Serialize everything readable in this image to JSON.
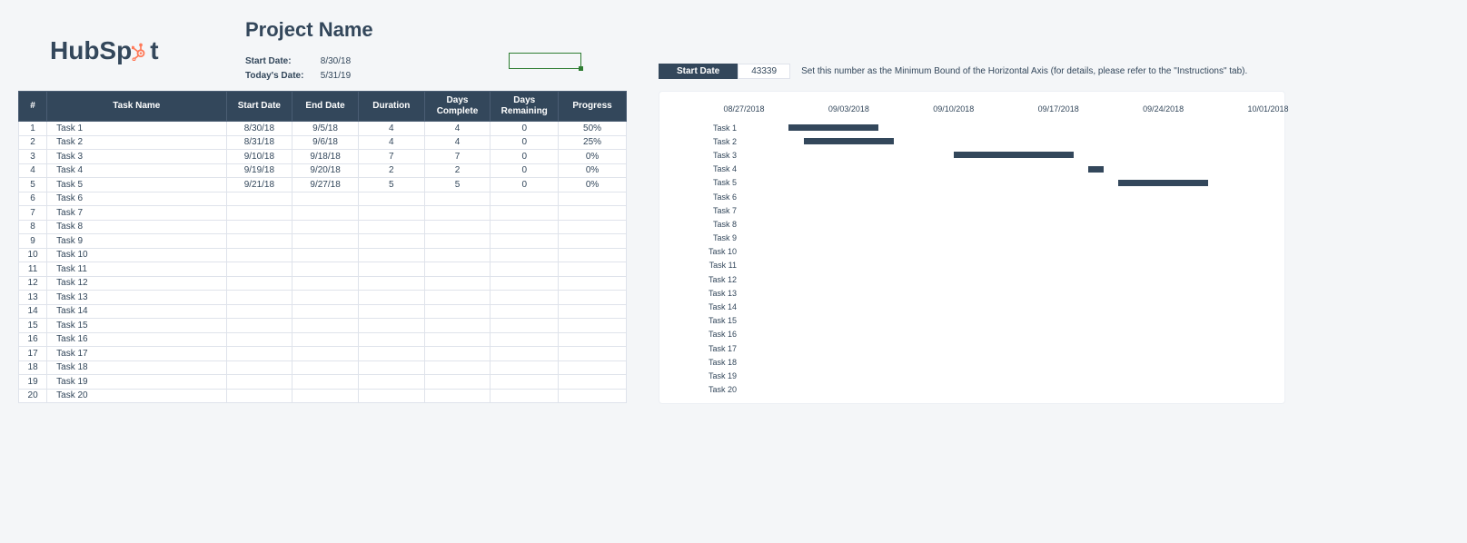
{
  "page": {
    "background_color": "#f4f6f8",
    "text_color": "#33475b"
  },
  "logo": {
    "text_pre": "HubSp",
    "text_post": "t",
    "accent_color": "#ff7a59"
  },
  "header": {
    "title": "Project Name",
    "start_date_label": "Start Date:",
    "start_date_value": "8/30/18",
    "today_label": "Today's Date:",
    "today_value": "5/31/19"
  },
  "startbar": {
    "label": "Start Date",
    "value": "43339",
    "note": "Set this number as the Minimum Bound of the Horizontal Axis (for details, please refer to the \"Instructions\" tab)."
  },
  "table": {
    "headers": {
      "idx": "#",
      "name": "Task Name",
      "start": "Start Date",
      "end": "End Date",
      "dur": "Duration",
      "dc": "Days\nComplete",
      "dr": "Days\nRemaining",
      "pr": "Progress"
    },
    "header_bg": "#33475b",
    "header_fg": "#ffffff",
    "border_color": "#dfe3eb",
    "rows": [
      {
        "idx": "1",
        "name": "Task 1",
        "start": "8/30/18",
        "end": "9/5/18",
        "dur": "4",
        "dc": "4",
        "dr": "0",
        "pr": "50%"
      },
      {
        "idx": "2",
        "name": "Task 2",
        "start": "8/31/18",
        "end": "9/6/18",
        "dur": "4",
        "dc": "4",
        "dr": "0",
        "pr": "25%"
      },
      {
        "idx": "3",
        "name": "Task 3",
        "start": "9/10/18",
        "end": "9/18/18",
        "dur": "7",
        "dc": "7",
        "dr": "0",
        "pr": "0%"
      },
      {
        "idx": "4",
        "name": "Task 4",
        "start": "9/19/18",
        "end": "9/20/18",
        "dur": "2",
        "dc": "2",
        "dr": "0",
        "pr": "0%"
      },
      {
        "idx": "5",
        "name": "Task 5",
        "start": "9/21/18",
        "end": "9/27/18",
        "dur": "5",
        "dc": "5",
        "dr": "0",
        "pr": "0%"
      },
      {
        "idx": "6",
        "name": "Task 6",
        "start": "",
        "end": "",
        "dur": "",
        "dc": "",
        "dr": "",
        "pr": ""
      },
      {
        "idx": "7",
        "name": "Task 7",
        "start": "",
        "end": "",
        "dur": "",
        "dc": "",
        "dr": "",
        "pr": ""
      },
      {
        "idx": "8",
        "name": "Task 8",
        "start": "",
        "end": "",
        "dur": "",
        "dc": "",
        "dr": "",
        "pr": ""
      },
      {
        "idx": "9",
        "name": "Task 9",
        "start": "",
        "end": "",
        "dur": "",
        "dc": "",
        "dr": "",
        "pr": ""
      },
      {
        "idx": "10",
        "name": "Task 10",
        "start": "",
        "end": "",
        "dur": "",
        "dc": "",
        "dr": "",
        "pr": ""
      },
      {
        "idx": "11",
        "name": "Task 11",
        "start": "",
        "end": "",
        "dur": "",
        "dc": "",
        "dr": "",
        "pr": ""
      },
      {
        "idx": "12",
        "name": "Task 12",
        "start": "",
        "end": "",
        "dur": "",
        "dc": "",
        "dr": "",
        "pr": ""
      },
      {
        "idx": "13",
        "name": "Task 13",
        "start": "",
        "end": "",
        "dur": "",
        "dc": "",
        "dr": "",
        "pr": ""
      },
      {
        "idx": "14",
        "name": "Task 14",
        "start": "",
        "end": "",
        "dur": "",
        "dc": "",
        "dr": "",
        "pr": ""
      },
      {
        "idx": "15",
        "name": "Task 15",
        "start": "",
        "end": "",
        "dur": "",
        "dc": "",
        "dr": "",
        "pr": ""
      },
      {
        "idx": "16",
        "name": "Task 16",
        "start": "",
        "end": "",
        "dur": "",
        "dc": "",
        "dr": "",
        "pr": ""
      },
      {
        "idx": "17",
        "name": "Task 17",
        "start": "",
        "end": "",
        "dur": "",
        "dc": "",
        "dr": "",
        "pr": ""
      },
      {
        "idx": "18",
        "name": "Task 18",
        "start": "",
        "end": "",
        "dur": "",
        "dc": "",
        "dr": "",
        "pr": ""
      },
      {
        "idx": "19",
        "name": "Task 19",
        "start": "",
        "end": "",
        "dur": "",
        "dc": "",
        "dr": "",
        "pr": ""
      },
      {
        "idx": "20",
        "name": "Task 20",
        "start": "",
        "end": "",
        "dur": "",
        "dc": "",
        "dr": "",
        "pr": ""
      }
    ]
  },
  "gantt": {
    "type": "bar",
    "bar_color": "#33475b",
    "background_color": "#ffffff",
    "x_min_serial": 43339,
    "x_max_serial": 43374,
    "x_ticks": [
      {
        "label": "08/27/2018",
        "serial": 43339
      },
      {
        "label": "09/03/2018",
        "serial": 43346
      },
      {
        "label": "09/10/2018",
        "serial": 43353
      },
      {
        "label": "09/17/2018",
        "serial": 43360
      },
      {
        "label": "09/24/2018",
        "serial": 43367
      },
      {
        "label": "10/01/2018",
        "serial": 43374
      }
    ],
    "tasks": [
      {
        "label": "Task 1",
        "start_serial": 43342,
        "duration": 6
      },
      {
        "label": "Task 2",
        "start_serial": 43343,
        "duration": 6
      },
      {
        "label": "Task 3",
        "start_serial": 43353,
        "duration": 8
      },
      {
        "label": "Task 4",
        "start_serial": 43362,
        "duration": 1
      },
      {
        "label": "Task 5",
        "start_serial": 43364,
        "duration": 6
      },
      {
        "label": "Task 6"
      },
      {
        "label": "Task 7"
      },
      {
        "label": "Task 8"
      },
      {
        "label": "Task 9"
      },
      {
        "label": "Task 10"
      },
      {
        "label": "Task 11"
      },
      {
        "label": "Task 12"
      },
      {
        "label": "Task 13"
      },
      {
        "label": "Task 14"
      },
      {
        "label": "Task 15"
      },
      {
        "label": "Task 16"
      },
      {
        "label": "Task 17"
      },
      {
        "label": "Task 18"
      },
      {
        "label": "Task 19"
      },
      {
        "label": "Task 20"
      }
    ]
  }
}
